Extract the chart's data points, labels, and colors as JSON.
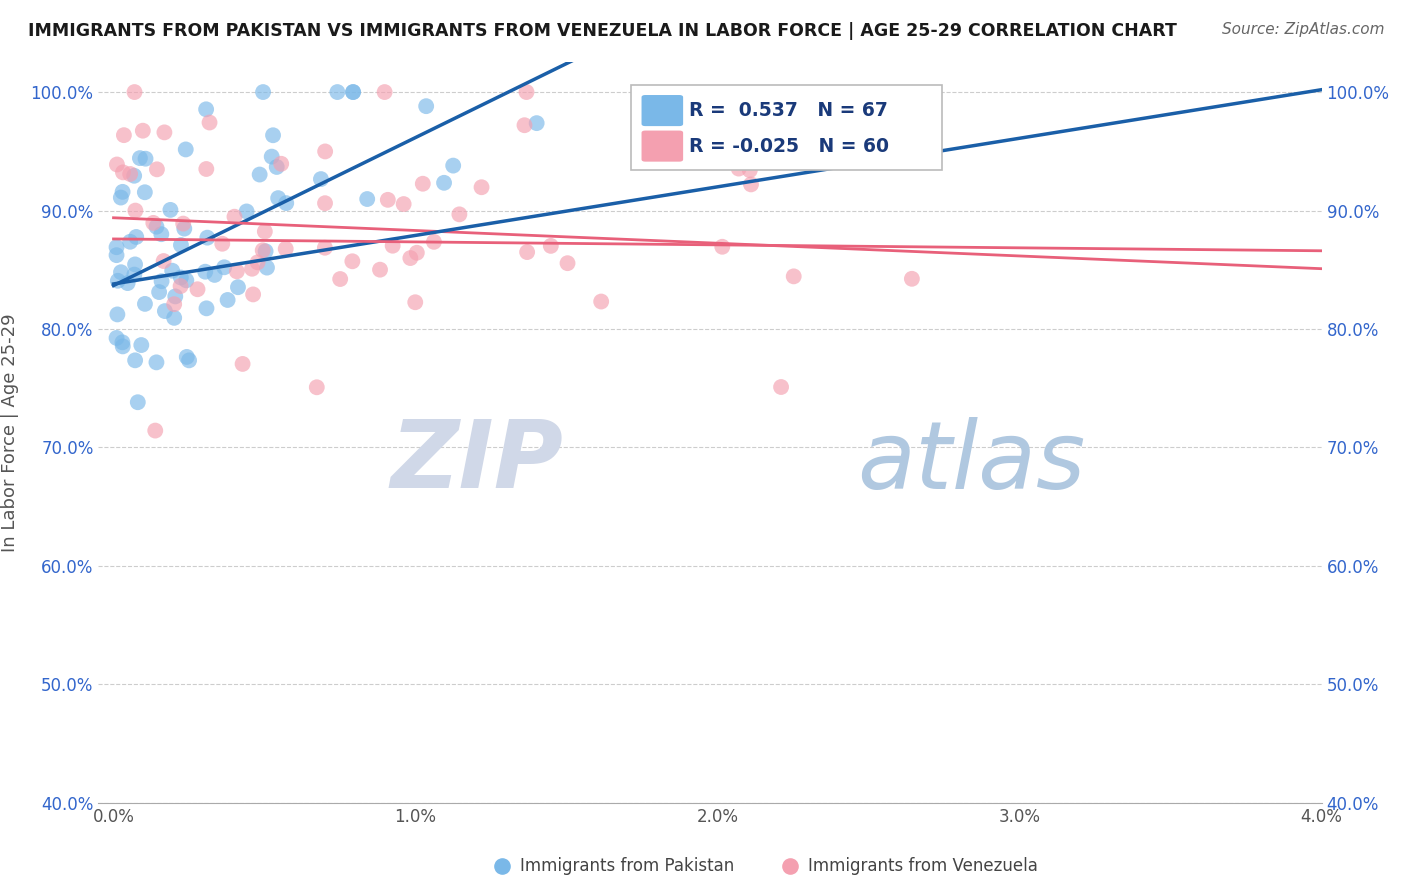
{
  "title": "IMMIGRANTS FROM PAKISTAN VS IMMIGRANTS FROM VENEZUELA IN LABOR FORCE | AGE 25-29 CORRELATION CHART",
  "source_text": "Source: ZipAtlas.com",
  "ylabel": "In Labor Force | Age 25-29",
  "xlim": [
    -0.0005,
    0.04
  ],
  "ylim": [
    0.4,
    1.025
  ],
  "x_ticks": [
    0.0,
    0.01,
    0.02,
    0.03,
    0.04
  ],
  "x_tick_labels": [
    "0.0%",
    "1.0%",
    "2.0%",
    "3.0%",
    "4.0%"
  ],
  "y_ticks": [
    0.4,
    0.5,
    0.6,
    0.7,
    0.8,
    0.9,
    1.0
  ],
  "y_tick_labels": [
    "40.0%",
    "50.0%",
    "60.0%",
    "70.0%",
    "80.0%",
    "90.0%",
    "100.0%"
  ],
  "pakistan_color": "#7ab8e8",
  "venezuela_color": "#f4a0b0",
  "pakistan_line_color": "#1a5fa8",
  "venezuela_line_color": "#e8607a",
  "pakistan_R": 0.537,
  "pakistan_N": 67,
  "venezuela_R": -0.025,
  "venezuela_N": 60,
  "legend_label_pakistan": "Immigrants from Pakistan",
  "legend_label_venezuela": "Immigrants from Venezuela",
  "background_color": "#ffffff",
  "grid_color": "#c8c8c8",
  "title_color": "#1a1a1a",
  "source_color": "#666666",
  "tick_color": "#3366cc",
  "watermark_zip_color": "#d0d8e8",
  "watermark_atlas_color": "#b0c8e0"
}
